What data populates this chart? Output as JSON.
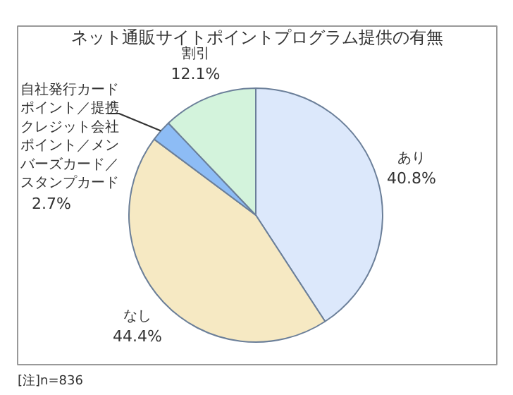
{
  "chart_data": {
    "type": "pie",
    "title": "ネット通販サイトポイントプログラム提供の有無",
    "categories": [
      "あり",
      "なし",
      "自社発行カードポイント／提携クレジット会社ポイント／メンバーズカード／スタンプカード",
      "割引"
    ],
    "values": [
      40.8,
      44.4,
      2.7,
      12.1
    ],
    "colors": [
      "#dce8fb",
      "#f6e9c3",
      "#8dbcf5",
      "#d3f3dc"
    ],
    "value_labels": [
      "40.8%",
      "44.4%",
      "2.7%",
      "12.1%"
    ],
    "annotations": [
      "[注]n=836"
    ]
  }
}
